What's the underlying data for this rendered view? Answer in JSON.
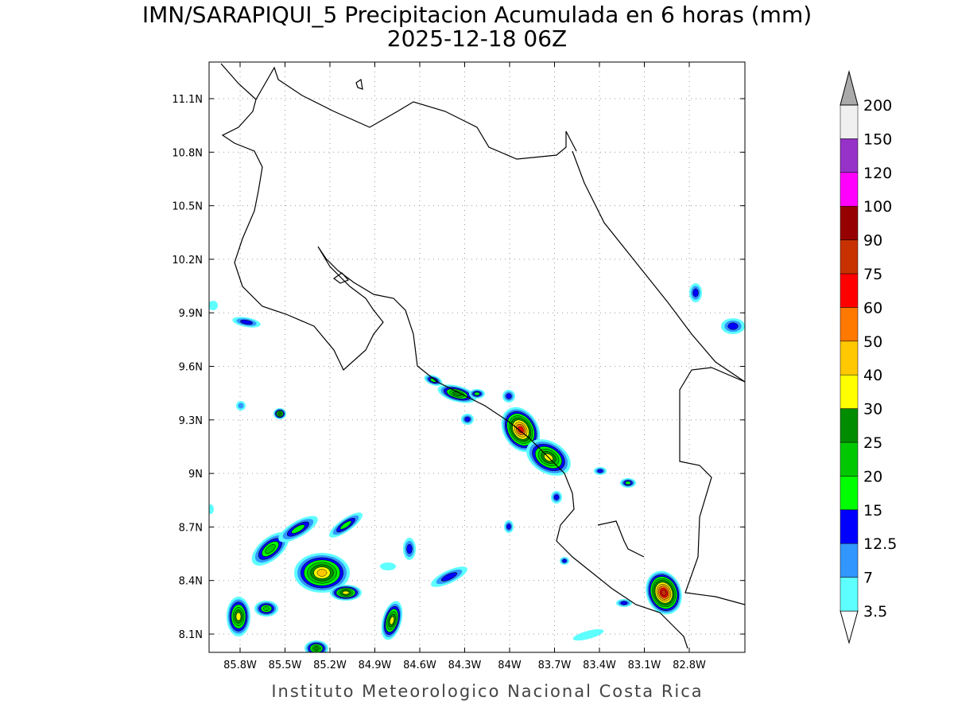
{
  "title": "IMN/SARAPIQUI_5 Precipitacion Acumulada en 6 horas (mm)",
  "subtitle": "2025-12-18 06Z",
  "lat_labels": [
    "11.1N",
    "10.8N",
    "10.5N",
    "10.2N",
    "9.9N",
    "9.6N",
    "9.3N",
    "9N",
    "8.7N",
    "8.4N",
    "8.1N"
  ],
  "lon_labels": [
    "85.8W",
    "85.5W",
    "85.2W",
    "84.9W",
    "84.6W",
    "84.3W",
    "84W",
    "83.7W",
    "83.4W",
    "83.1W",
    "82.8W"
  ],
  "colorbar": {
    "levels": [
      "3.5",
      "7",
      "12.5",
      "15",
      "20",
      "25",
      "30",
      "40",
      "50",
      "60",
      "75",
      "90",
      "100",
      "120",
      "150",
      "200"
    ],
    "colors": [
      "#ffffff",
      "#5effff",
      "#3296ff",
      "#0000ff",
      "#00ff00",
      "#00c800",
      "#008c00",
      "#ffff00",
      "#ffc800",
      "#ff7800",
      "#ff0000",
      "#c83200",
      "#960000",
      "#ff00ff",
      "#9632c8",
      "#f0f0f0",
      "#aaaaaa"
    ]
  },
  "footer": "Instituto Meteorologico Nacional Costa Rica"
}
